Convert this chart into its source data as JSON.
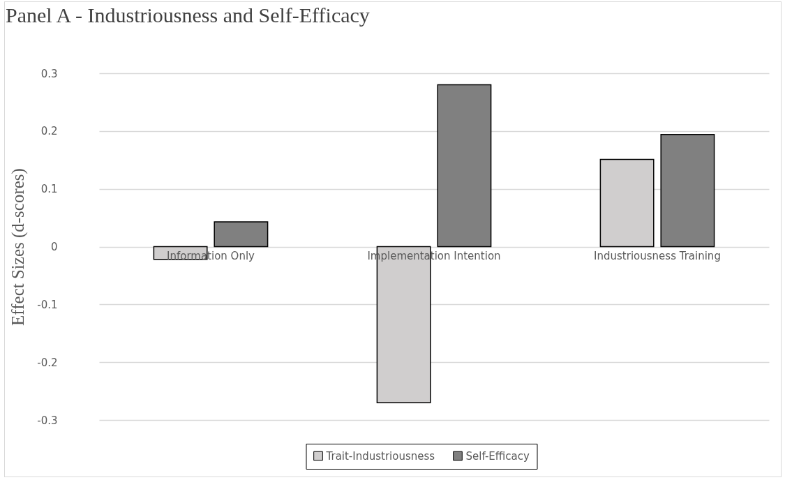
{
  "chart_data": {
    "type": "bar",
    "title": "Panel A - Industriousness and Self-Efficacy",
    "ylabel": "Effect Sizes (d-scores)",
    "categories": [
      "Information Only",
      "Implementation Intention",
      "Industriousness Training"
    ],
    "series": [
      {
        "name": "Trait-Industriousness",
        "color": "#d0cece",
        "values": [
          -0.022,
          -0.27,
          0.151
        ]
      },
      {
        "name": "Self-Efficacy",
        "color": "#808080",
        "values": [
          0.043,
          0.28,
          0.194
        ]
      }
    ],
    "ylim": [
      -0.3,
      0.3
    ],
    "yticks": [
      -0.3,
      -0.2,
      -0.1,
      0,
      0.1,
      0.2,
      0.3
    ],
    "grid": "y",
    "legend": "bottom"
  }
}
